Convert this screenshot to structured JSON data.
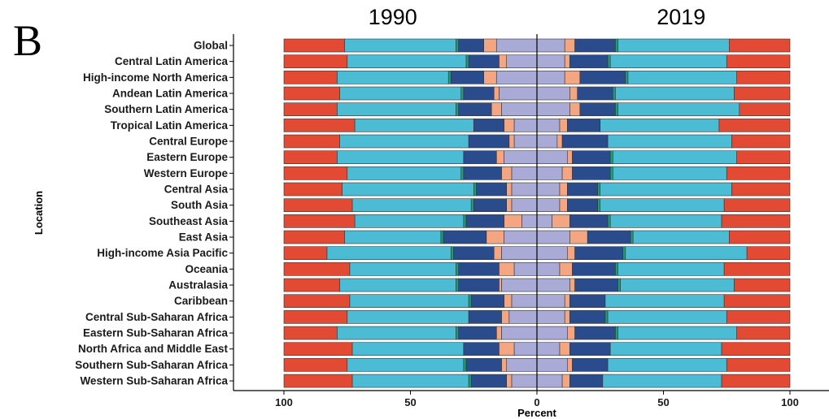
{
  "panel_label": "B",
  "chart_data": {
    "type": "bar",
    "orientation": "horizontal",
    "stacked": "diverging",
    "xlabel": "Percent",
    "ylabel": "Location",
    "xlim": [
      -100,
      100
    ],
    "xticks": [
      {
        "v": -100,
        "label": "100"
      },
      {
        "v": -50,
        "label": "50"
      },
      {
        "v": 0,
        "label": "0"
      },
      {
        "v": 50,
        "label": "50"
      },
      {
        "v": 100,
        "label": "100"
      }
    ],
    "panels": [
      {
        "side": "left",
        "title": "1990"
      },
      {
        "side": "right",
        "title": "2019"
      }
    ],
    "segment_colors": [
      "#a9abd6",
      "#f4a582",
      "#2b4c8c",
      "#1d9e7b",
      "#4cbcd4",
      "#e34a33"
    ],
    "categories": [
      "Global",
      "Central Latin America",
      "High-income North America",
      "Andean Latin America",
      "Southern Latin America",
      "Tropical Latin America",
      "Central Europe",
      "Eastern Europe",
      "Western Europe",
      "Central Asia",
      "South Asia",
      "Southeast Asia",
      "East Asia",
      "High-income Asia Pacific",
      "Oceania",
      "Australasia",
      "Caribbean",
      "Central Sub-Saharan Africa",
      "Eastern Sub-Saharan Africa",
      "North Africa and Middle East",
      "Southern Sub-Saharan Africa",
      "Western Sub-Saharan Africa"
    ],
    "series": [
      {
        "side": "left",
        "values": [
          [
            16,
            21,
            31,
            32,
            76,
            100
          ],
          [
            12,
            15,
            27,
            28,
            75,
            100
          ],
          [
            16,
            21,
            34,
            35,
            79,
            100
          ],
          [
            15,
            17,
            29,
            30,
            78,
            100
          ],
          [
            14,
            18,
            31,
            32,
            79,
            100
          ],
          [
            9,
            13,
            25,
            25,
            72,
            100
          ],
          [
            9,
            11,
            27,
            27,
            78,
            100
          ],
          [
            13,
            16,
            29,
            29,
            79,
            100
          ],
          [
            10,
            14,
            29,
            30,
            75,
            100
          ],
          [
            10,
            12,
            24,
            25,
            77,
            100
          ],
          [
            10,
            12,
            25,
            26,
            73,
            100
          ],
          [
            6,
            13,
            28,
            29,
            72,
            100
          ],
          [
            13,
            20,
            37,
            38,
            76,
            100
          ],
          [
            14,
            17,
            33,
            34,
            83,
            100
          ],
          [
            9,
            15,
            31,
            32,
            74,
            100
          ],
          [
            14,
            15,
            31,
            32,
            78,
            100
          ],
          [
            10,
            13,
            26,
            27,
            74,
            100
          ],
          [
            11,
            14,
            27,
            27,
            75,
            100
          ],
          [
            14,
            16,
            31,
            32,
            79,
            100
          ],
          [
            9,
            15,
            29,
            29,
            73,
            100
          ],
          [
            12,
            14,
            28,
            29,
            75,
            100
          ],
          [
            10,
            12,
            26,
            27,
            73,
            100
          ]
        ]
      },
      {
        "side": "right",
        "values": [
          [
            11,
            15,
            31,
            32,
            76,
            100
          ],
          [
            11,
            13,
            28,
            29,
            75,
            100
          ],
          [
            11,
            17,
            35,
            36,
            79,
            100
          ],
          [
            13,
            16,
            30,
            31,
            78,
            100
          ],
          [
            13,
            17,
            31,
            32,
            80,
            100
          ],
          [
            9,
            12,
            25,
            25,
            72,
            100
          ],
          [
            8,
            10,
            28,
            28,
            77,
            100
          ],
          [
            12,
            14,
            29,
            30,
            79,
            100
          ],
          [
            10,
            14,
            29,
            30,
            75,
            100
          ],
          [
            9,
            12,
            24,
            25,
            77,
            100
          ],
          [
            9,
            12,
            24,
            25,
            74,
            100
          ],
          [
            6,
            13,
            28,
            29,
            73,
            100
          ],
          [
            13,
            20,
            37,
            38,
            76,
            100
          ],
          [
            12,
            15,
            34,
            35,
            83,
            100
          ],
          [
            9,
            14,
            31,
            32,
            74,
            100
          ],
          [
            13,
            15,
            32,
            33,
            78,
            100
          ],
          [
            11,
            13,
            27,
            27,
            74,
            100
          ],
          [
            11,
            13,
            27,
            28,
            75,
            100
          ],
          [
            12,
            15,
            31,
            32,
            79,
            100
          ],
          [
            9,
            13,
            29,
            29,
            73,
            100
          ],
          [
            12,
            14,
            28,
            28,
            75,
            100
          ],
          [
            10,
            13,
            26,
            26,
            73,
            100
          ]
        ]
      }
    ]
  }
}
